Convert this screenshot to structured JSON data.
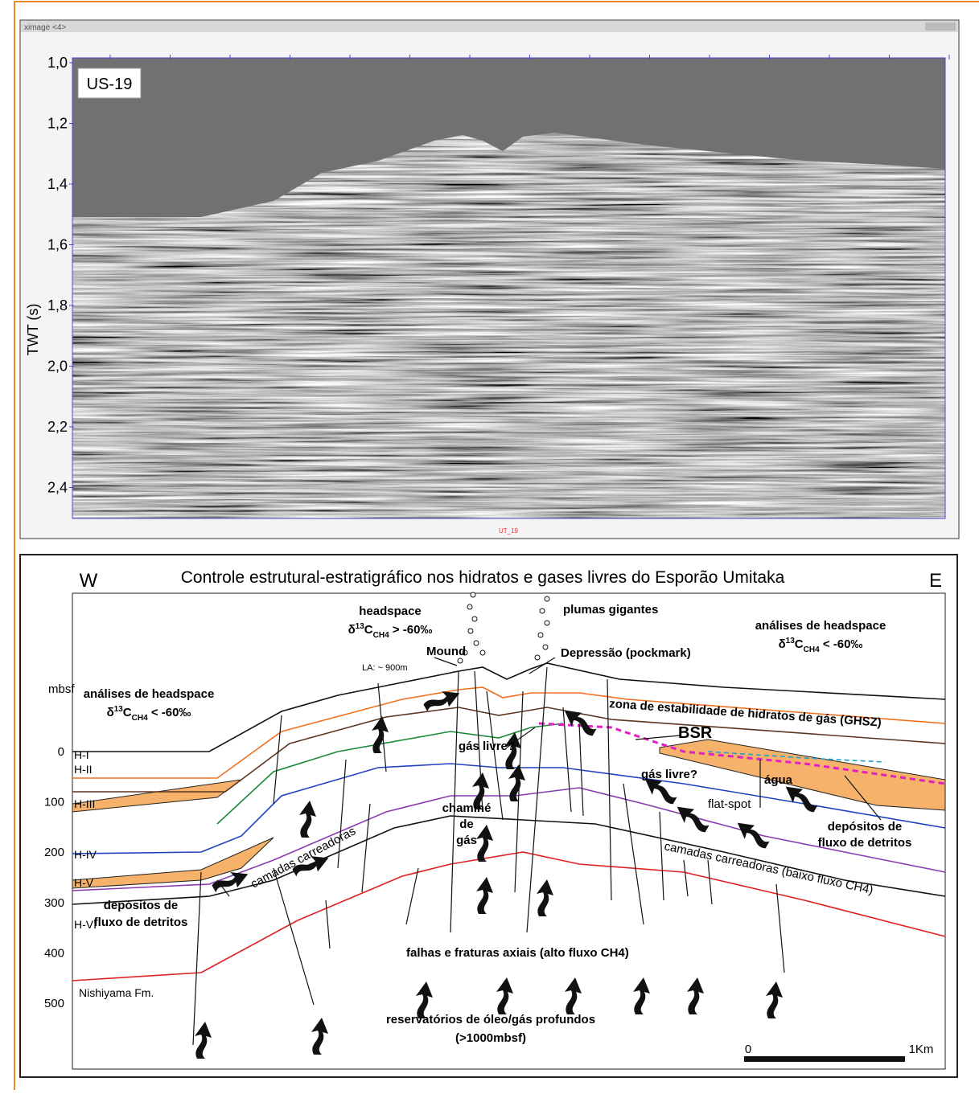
{
  "seismic": {
    "window_title": "ximage <4>",
    "label": "US-19",
    "footer": "UT_19",
    "y_axis_label": "TWT (s)",
    "yticks": [
      "1,0",
      "1,2",
      "1,4",
      "1,6",
      "1,8",
      "2,0",
      "2,2",
      "2,4"
    ]
  },
  "section": {
    "title": "Controle estrutural-estratigráfico nos hidratos e gases livres do Esporão Umitaka",
    "west": "W",
    "east": "E",
    "depth_label": "mbsf",
    "depth_ticks": [
      "0",
      "100",
      "200",
      "300",
      "400",
      "500"
    ],
    "horizons": [
      "H-I",
      "H-II",
      "H-III",
      "H-IV",
      "H-V",
      "H-VI"
    ],
    "headspace_top": {
      "line1": "headspace",
      "delta": "δ",
      "iso": "13",
      "c": "C",
      "sub": "CH4",
      "rest": " > -60‰"
    },
    "headspace_right": {
      "line1": "análises de headspace",
      "delta": "δ",
      "iso": "13",
      "c": "C",
      "sub": "CH4",
      "rest": " < -60‰"
    },
    "headspace_left": {
      "line1": "análises de headspace",
      "delta": "δ",
      "iso": "13",
      "c": "C",
      "sub": "CH4",
      "rest": " < -60‰"
    },
    "plumes": "plumas gigantes",
    "mound": "Mound",
    "water_depth": "LA: ~ 900m",
    "pockmark": "Depressão (pockmark)",
    "ghsz": "zona de estabilidade de hidratos de gás (GHSZ)",
    "bsr": "BSR",
    "free_gas_1": "gás livre?",
    "free_gas_2": "gás livre?",
    "water": "água",
    "flat_spot": "flat-spot",
    "debris_right": [
      "depósitos de",
      "fluxo de detritos"
    ],
    "chimney": [
      "chaminé",
      "de",
      "gás"
    ],
    "carrier_right": "camadas carreadoras (baixo fluxo CH4)",
    "carrier_left": "camadas carreadoras",
    "debris_left": [
      "depósitos de",
      "fluxo de detritos"
    ],
    "faults": "falhas e fraturas axiais (alto fluxo CH4)",
    "formation": "Nishiyama Fm.",
    "reservoirs": [
      "reservatórios de óleo/gás profundos",
      "(>1000mbsf)"
    ],
    "scale": {
      "start": "0",
      "end": "1Km"
    }
  }
}
